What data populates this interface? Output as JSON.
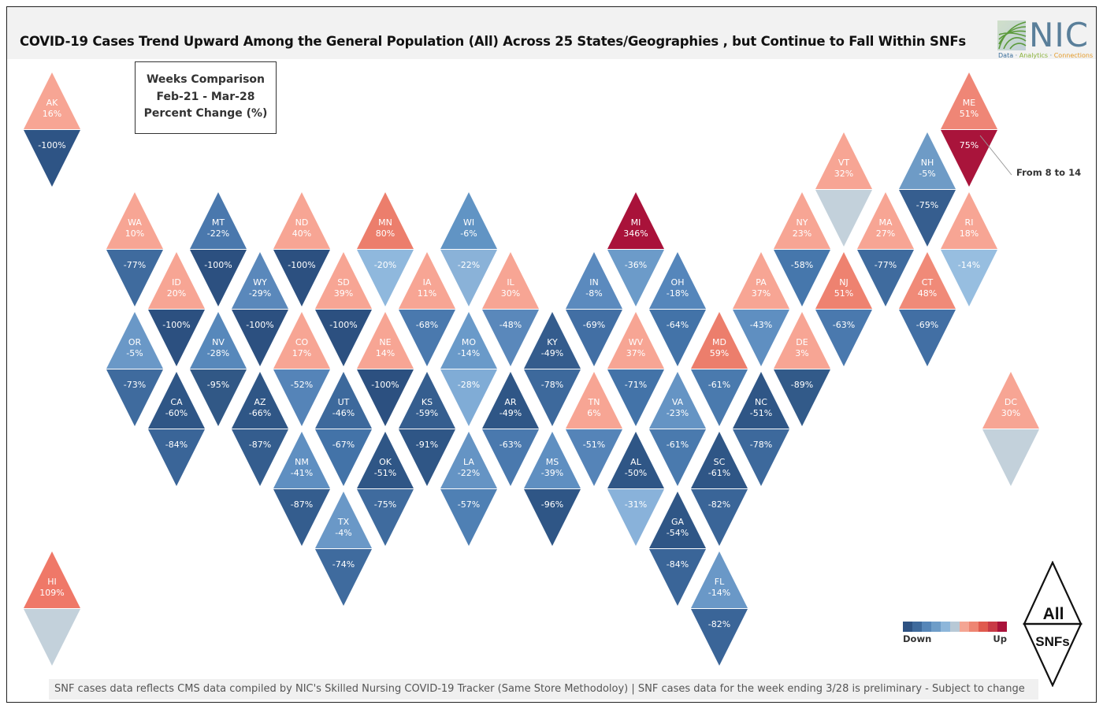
{
  "title": "COVID-19 Cases Trend Upward Among the General Population (All) Across 25 States/Geographies , but Continue to Fall Within SNFs",
  "logo": {
    "name": "NIC",
    "tag_part1": "Data",
    "tag_sep1": " · ",
    "tag_part2": "Analytics",
    "tag_sep2": " · ",
    "tag_part3": "Connections"
  },
  "legend_box": {
    "line1": "Weeks Comparison",
    "line2": "Feb-21 - Mar-28",
    "line3": "Percent Change (%)"
  },
  "callout": {
    "label": "From 8 to 14",
    "state": "ME"
  },
  "scale": {
    "down_label": "Down",
    "up_label": "Up",
    "colors": [
      "#2d5282",
      "#3e6a9c",
      "#5686b8",
      "#6e9dc8",
      "#8db6da",
      "#b8c9d6",
      "#f4a593",
      "#ee8572",
      "#e05a4e",
      "#c93a46",
      "#a9123a"
    ]
  },
  "all_snfs": {
    "line1": "All",
    "line2": "SNFs"
  },
  "footer": "SNF cases data reflects CMS data compiled by NIC's Skilled Nursing COVID-19 Tracker (Same Store Methodoloy) | SNF cases data for the week ending 3/28 is preliminary - Subject to change",
  "states": [
    {
      "abbr": "AK",
      "all": "16%",
      "snf": "-100%",
      "all_color": "#f7a594",
      "snf_color": "#2e5485"
    },
    {
      "abbr": "ME",
      "all": "51%",
      "snf": "75%",
      "all_color": "#ef8676",
      "snf_color": "#a9143b"
    },
    {
      "abbr": "VT",
      "all": "32%",
      "snf": "",
      "all_color": "#f7a594",
      "snf_color": "#c3d1db"
    },
    {
      "abbr": "NH",
      "all": "-5%",
      "snf": "-75%",
      "all_color": "#6e9bc6",
      "snf_color": "#365e8f"
    },
    {
      "abbr": "WA",
      "all": "10%",
      "snf": "-77%",
      "all_color": "#f7a594",
      "snf_color": "#3f6b9e"
    },
    {
      "abbr": "MT",
      "all": "-22%",
      "snf": "-100%",
      "all_color": "#4a78ad",
      "snf_color": "#2c5080"
    },
    {
      "abbr": "ND",
      "all": "40%",
      "snf": "-100%",
      "all_color": "#f7a594",
      "snf_color": "#2c5080"
    },
    {
      "abbr": "MN",
      "all": "80%",
      "snf": "-20%",
      "all_color": "#ec7e6c",
      "snf_color": "#8fb8dd"
    },
    {
      "abbr": "WI",
      "all": "-6%",
      "snf": "-22%",
      "all_color": "#6194c4",
      "snf_color": "#8ab2d8"
    },
    {
      "abbr": "MI",
      "all": "346%",
      "snf": "-36%",
      "all_color": "#a9123a",
      "snf_color": "#6c9bc9"
    },
    {
      "abbr": "NY",
      "all": "23%",
      "snf": "-58%",
      "all_color": "#f7a594",
      "snf_color": "#4677ac"
    },
    {
      "abbr": "MA",
      "all": "27%",
      "snf": "-77%",
      "all_color": "#f7a594",
      "snf_color": "#3f6b9e"
    },
    {
      "abbr": "RI",
      "all": "18%",
      "snf": "-14%",
      "all_color": "#f7a594",
      "snf_color": "#97bee0"
    },
    {
      "abbr": "ID",
      "all": "20%",
      "snf": "-100%",
      "all_color": "#f7a594",
      "snf_color": "#2c5080"
    },
    {
      "abbr": "WY",
      "all": "-29%",
      "snf": "-100%",
      "all_color": "#5a88bb",
      "snf_color": "#2c5080"
    },
    {
      "abbr": "SD",
      "all": "39%",
      "snf": "-100%",
      "all_color": "#f7a594",
      "snf_color": "#2c5080"
    },
    {
      "abbr": "IA",
      "all": "11%",
      "snf": "-68%",
      "all_color": "#f7a594",
      "snf_color": "#4a79ae"
    },
    {
      "abbr": "IL",
      "all": "30%",
      "snf": "-48%",
      "all_color": "#f7a594",
      "snf_color": "#5a88bb"
    },
    {
      "abbr": "IN",
      "all": "-8%",
      "snf": "-69%",
      "all_color": "#5b8abe",
      "snf_color": "#426fa4"
    },
    {
      "abbr": "OH",
      "all": "-18%",
      "snf": "-64%",
      "all_color": "#5586bb",
      "snf_color": "#4373a8"
    },
    {
      "abbr": "PA",
      "all": "37%",
      "snf": "-43%",
      "all_color": "#f7a594",
      "snf_color": "#5f8fc1"
    },
    {
      "abbr": "NJ",
      "all": "51%",
      "snf": "-63%",
      "all_color": "#ee8270",
      "snf_color": "#4a79ae"
    },
    {
      "abbr": "CT",
      "all": "48%",
      "snf": "-69%",
      "all_color": "#f08a78",
      "snf_color": "#426fa4"
    },
    {
      "abbr": "OR",
      "all": "-5%",
      "snf": "-73%",
      "all_color": "#6a98c7",
      "snf_color": "#3f6b9e"
    },
    {
      "abbr": "NV",
      "all": "-28%",
      "snf": "-95%",
      "all_color": "#5788bb",
      "snf_color": "#315886"
    },
    {
      "abbr": "CO",
      "all": "17%",
      "snf": "-52%",
      "all_color": "#f7a594",
      "snf_color": "#5584b8"
    },
    {
      "abbr": "NE",
      "all": "14%",
      "snf": "-100%",
      "all_color": "#f7a594",
      "snf_color": "#2c5080"
    },
    {
      "abbr": "MO",
      "all": "-14%",
      "snf": "-28%",
      "all_color": "#6a9ac9",
      "snf_color": "#80acd6"
    },
    {
      "abbr": "KY",
      "all": "-49%",
      "snf": "-78%",
      "all_color": "#345c8d",
      "snf_color": "#3d699c"
    },
    {
      "abbr": "WV",
      "all": "37%",
      "snf": "-71%",
      "all_color": "#f7a594",
      "snf_color": "#4373a8"
    },
    {
      "abbr": "MD",
      "all": "59%",
      "snf": "-61%",
      "all_color": "#ec7e6c",
      "snf_color": "#4a7aae"
    },
    {
      "abbr": "DE",
      "all": "3%",
      "snf": "-89%",
      "all_color": "#f7a594",
      "snf_color": "#325a89"
    },
    {
      "abbr": "CA",
      "all": "-60%",
      "snf": "-84%",
      "all_color": "#2f5686",
      "snf_color": "#3a6598"
    },
    {
      "abbr": "AZ",
      "all": "-66%",
      "snf": "-87%",
      "all_color": "#2f5686",
      "snf_color": "#345d8e"
    },
    {
      "abbr": "UT",
      "all": "-46%",
      "snf": "-67%",
      "all_color": "#3d699c",
      "snf_color": "#4373a8"
    },
    {
      "abbr": "KS",
      "all": "-59%",
      "snf": "-91%",
      "all_color": "#355e8f",
      "snf_color": "#2f5686"
    },
    {
      "abbr": "AR",
      "all": "-49%",
      "snf": "-63%",
      "all_color": "#2f5686",
      "snf_color": "#4a79ae"
    },
    {
      "abbr": "TN",
      "all": "6%",
      "snf": "-51%",
      "all_color": "#f7a594",
      "snf_color": "#5584b8"
    },
    {
      "abbr": "VA",
      "all": "-23%",
      "snf": "-61%",
      "all_color": "#6594c4",
      "snf_color": "#4a7aae"
    },
    {
      "abbr": "NC",
      "all": "-51%",
      "snf": "-78%",
      "all_color": "#2f5686",
      "snf_color": "#3d699c"
    },
    {
      "abbr": "DC",
      "all": "30%",
      "snf": "",
      "all_color": "#f7a594",
      "snf_color": "#c3d1db"
    },
    {
      "abbr": "NM",
      "all": "-41%",
      "snf": "-87%",
      "all_color": "#5f8fc1",
      "snf_color": "#345d8e"
    },
    {
      "abbr": "OK",
      "all": "-51%",
      "snf": "-75%",
      "all_color": "#2f5686",
      "snf_color": "#3f6b9e"
    },
    {
      "abbr": "LA",
      "all": "-22%",
      "snf": "-57%",
      "all_color": "#6594c4",
      "snf_color": "#4f80b4"
    },
    {
      "abbr": "MS",
      "all": "-39%",
      "snf": "-96%",
      "all_color": "#5f8fc1",
      "snf_color": "#2f5686"
    },
    {
      "abbr": "AL",
      "all": "-50%",
      "snf": "-31%",
      "all_color": "#2f5686",
      "snf_color": "#89b2da"
    },
    {
      "abbr": "SC",
      "all": "-61%",
      "snf": "-82%",
      "all_color": "#2f5686",
      "snf_color": "#3a6598"
    },
    {
      "abbr": "TX",
      "all": "-4%",
      "snf": "-74%",
      "all_color": "#6a98c7",
      "snf_color": "#3f6b9e"
    },
    {
      "abbr": "GA",
      "all": "-54%",
      "snf": "-84%",
      "all_color": "#2f5686",
      "snf_color": "#3a6598"
    },
    {
      "abbr": "FL",
      "all": "-14%",
      "snf": "-82%",
      "all_color": "#6a98c7",
      "snf_color": "#3a6598"
    },
    {
      "abbr": "HI",
      "all": "109%",
      "snf": "",
      "all_color": "#ef7868",
      "snf_color": "#c3d1db"
    }
  ]
}
